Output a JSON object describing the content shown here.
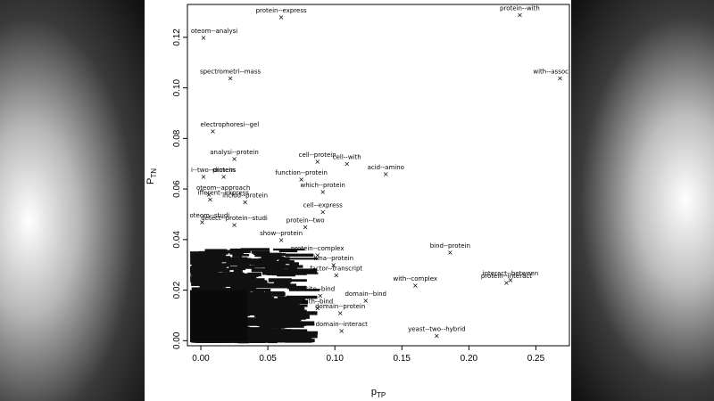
{
  "chart_data": {
    "type": "scatter",
    "xlabel": "pTP",
    "ylabel": "PTN",
    "xlabel_main": "p",
    "xlabel_sub": "TP",
    "ylabel_main": "P",
    "ylabel_sub": "TN",
    "xlim": [
      -0.01,
      0.275
    ],
    "ylim": [
      -0.002,
      0.133
    ],
    "x_ticks": [
      "0.00",
      "0.05",
      "0.10",
      "0.15",
      "0.20",
      "0.25"
    ],
    "x_tick_values": [
      0,
      0.05,
      0.1,
      0.15,
      0.2,
      0.25
    ],
    "y_ticks": [
      "0.00",
      "0.02",
      "0.04",
      "0.06",
      "0.08",
      "0.10",
      "0.12"
    ],
    "y_tick_values": [
      0,
      0.02,
      0.04,
      0.06,
      0.08,
      0.1,
      0.12
    ],
    "grid": false,
    "marker": "×",
    "points": [
      {
        "label": "protein--express",
        "x": 0.06,
        "y": 0.128
      },
      {
        "label": "protein--with",
        "x": 0.238,
        "y": 0.129
      },
      {
        "label": "oteom--analysi",
        "x": 0.002,
        "y": 0.12
      },
      {
        "label": "spectrometri--mass",
        "x": 0.022,
        "y": 0.104
      },
      {
        "label": "with--assoc",
        "x": 0.268,
        "y": 0.104
      },
      {
        "label": "electrophoresi--gel",
        "x": 0.009,
        "y": 0.083
      },
      {
        "label": "analysi--protein",
        "x": 0.025,
        "y": 0.072
      },
      {
        "label": "cell--protein",
        "x": 0.087,
        "y": 0.071
      },
      {
        "label": "cell--with",
        "x": 0.109,
        "y": 0.07
      },
      {
        "label": "i--two--dimens",
        "x": 0.002,
        "y": 0.065
      },
      {
        "label": "protein",
        "x": 0.017,
        "y": 0.065
      },
      {
        "label": "acid--amino",
        "x": 0.138,
        "y": 0.066
      },
      {
        "label": "function--protein",
        "x": 0.075,
        "y": 0.064
      },
      {
        "label": "oteom--approach",
        "x": 0.006,
        "y": 0.058
      },
      {
        "label": "ifferent--express",
        "x": 0.007,
        "y": 0.056
      },
      {
        "label": "includ--protein",
        "x": 0.033,
        "y": 0.055
      },
      {
        "label": "which--protein",
        "x": 0.091,
        "y": 0.059
      },
      {
        "label": "cell--express",
        "x": 0.091,
        "y": 0.051
      },
      {
        "label": "oteom--studi",
        "x": 0.001,
        "y": 0.047
      },
      {
        "label": "detect--protein--studi",
        "x": 0.025,
        "y": 0.046
      },
      {
        "label": "protein--two",
        "x": 0.078,
        "y": 0.045
      },
      {
        "label": "show--protein",
        "x": 0.06,
        "y": 0.04
      },
      {
        "label": "bind--protein",
        "x": 0.186,
        "y": 0.035
      },
      {
        "label": "protein--complex",
        "x": 0.087,
        "y": 0.034
      },
      {
        "label": "kina--protein",
        "x": 0.099,
        "y": 0.03
      },
      {
        "label": "interact--between",
        "x": 0.231,
        "y": 0.024
      },
      {
        "label": "protein--interact",
        "x": 0.228,
        "y": 0.023
      },
      {
        "label": "with--complex",
        "x": 0.16,
        "y": 0.022
      },
      {
        "label": "factor--transcript",
        "x": 0.101,
        "y": 0.026
      },
      {
        "label": "site--bind",
        "x": 0.089,
        "y": 0.018
      },
      {
        "label": "domain--bind",
        "x": 0.123,
        "y": 0.016
      },
      {
        "label": "with--bind",
        "x": 0.087,
        "y": 0.013
      },
      {
        "label": "domain--protein",
        "x": 0.104,
        "y": 0.011
      },
      {
        "label": "domain--interact",
        "x": 0.105,
        "y": 0.004
      },
      {
        "label": "yeast--two--hybrid",
        "x": 0.176,
        "y": 0.002
      }
    ]
  }
}
